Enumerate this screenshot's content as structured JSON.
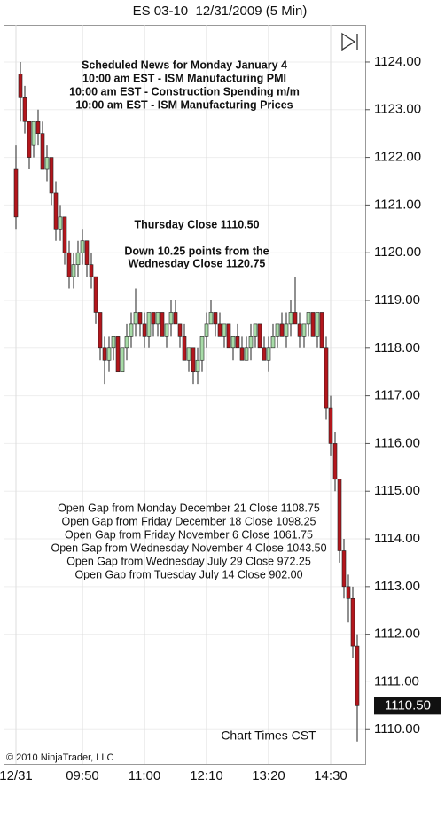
{
  "chart_data": {
    "type": "candlestick",
    "title": "ES 03-10  12/31/2009 (5 Min)",
    "categories": [
      "12/31",
      null,
      null,
      null,
      null,
      null,
      null,
      null,
      null,
      null,
      null,
      null,
      null,
      null,
      null,
      "09:50",
      null,
      null,
      null,
      null,
      null,
      null,
      null,
      null,
      null,
      null,
      null,
      null,
      null,
      "11:00",
      null,
      null,
      null,
      null,
      null,
      null,
      null,
      null,
      null,
      null,
      null,
      null,
      null,
      "12:10",
      null,
      null,
      null,
      null,
      null,
      null,
      null,
      null,
      null,
      null,
      null,
      null,
      null,
      "13:20",
      null,
      null,
      null,
      null,
      null,
      null,
      null,
      null,
      null,
      null,
      null,
      null,
      null,
      "14:30",
      null,
      null,
      null,
      null,
      null,
      null
    ],
    "open": [
      1121.75,
      1123.75,
      1123.25,
      1122.75,
      1122.25,
      1122.75,
      1122.5,
      1121.75,
      1122,
      1121.25,
      1120.5,
      1120.75,
      1120,
      1119.5,
      1119.75,
      1120,
      1120.25,
      1119.75,
      1119.5,
      1118.75,
      1118,
      1117.75,
      1118,
      1118.25,
      1117.5,
      1118,
      1118.25,
      1118.5,
      1118.75,
      1118.5,
      1118.25,
      1118.75,
      1118.5,
      1118.75,
      1118.25,
      1118.5,
      1118.75,
      1118.5,
      1118.25,
      1117.75,
      1118,
      1117.5,
      1117.75,
      1118.25,
      1118.5,
      1118.75,
      1118.5,
      1118.25,
      1118.5,
      1118,
      1118.25,
      1118,
      1117.75,
      1118,
      1118.25,
      1118.5,
      1118,
      1117.75,
      1118,
      1118.25,
      1118.5,
      1118.25,
      1118.5,
      1118.75,
      1118.5,
      1118.25,
      1118.5,
      1118.75,
      1118.25,
      1118.75,
      1118,
      1116.75,
      1116,
      1115.25,
      1113.75,
      1113,
      1112.75,
      1111.75
    ],
    "high": [
      1122.25,
      1124,
      1123.5,
      1122.75,
      1122.75,
      1123,
      1122.75,
      1122.25,
      1122,
      1121.5,
      1121,
      1120.75,
      1120.25,
      1120,
      1120.25,
      1120.5,
      1120.25,
      1120,
      1119.5,
      1118.75,
      1118.25,
      1118.25,
      1118.25,
      1118.25,
      1118,
      1118.5,
      1118.75,
      1119.25,
      1118.75,
      1118.75,
      1118.75,
      1118.75,
      1118.75,
      1118.75,
      1118.5,
      1119,
      1119,
      1118.5,
      1118.5,
      1118,
      1118,
      1118,
      1118.25,
      1118.75,
      1119,
      1118.75,
      1118.75,
      1118.5,
      1118.5,
      1118.25,
      1118.5,
      1118.25,
      1118.25,
      1118.5,
      1118.5,
      1118.5,
      1118.25,
      1118.25,
      1118.5,
      1118.5,
      1118.75,
      1118.75,
      1119,
      1119.5,
      1118.75,
      1118.5,
      1118.75,
      1118.75,
      1118.75,
      1118.75,
      1118.25,
      1117,
      1116.25,
      1115.25,
      1114,
      1113.25,
      1113,
      1112
    ],
    "low": [
      1120.5,
      1122.75,
      1122.5,
      1121.75,
      1122,
      1122.25,
      1121.75,
      1121.5,
      1121,
      1120.25,
      1120.25,
      1119.75,
      1119.25,
      1119.25,
      1119.5,
      1119.75,
      1119.5,
      1119.25,
      1118.5,
      1117.75,
      1117.25,
      1117.5,
      1117.75,
      1117.5,
      1117.5,
      1117.75,
      1118,
      1118.25,
      1118.25,
      1118,
      1118,
      1118.25,
      1118.25,
      1118.25,
      1118,
      1118.25,
      1118.5,
      1118,
      1117.75,
      1117.5,
      1117.25,
      1117.25,
      1117.5,
      1118,
      1118.5,
      1118.25,
      1118.25,
      1118,
      1118,
      1117.75,
      1118,
      1117.75,
      1117.75,
      1117.75,
      1118,
      1118,
      1117.75,
      1117.5,
      1118,
      1118,
      1118.25,
      1118,
      1118.25,
      1118.5,
      1118,
      1118,
      1118.25,
      1118.25,
      1118,
      1118,
      1116.5,
      1115.75,
      1115,
      1113.5,
      1112.75,
      1112.25,
      1111.5,
      1109.75
    ],
    "close": [
      1120.75,
      1123.25,
      1122.75,
      1122,
      1122.75,
      1122.5,
      1121.75,
      1122,
      1121.25,
      1120.5,
      1120.75,
      1120,
      1119.5,
      1119.75,
      1120,
      1120.25,
      1119.75,
      1119.5,
      1118.75,
      1118,
      1117.75,
      1118,
      1118.25,
      1117.5,
      1118,
      1118.25,
      1118.5,
      1118.75,
      1118.5,
      1118.25,
      1118.75,
      1118.5,
      1118.75,
      1118.25,
      1118.5,
      1118.75,
      1118.5,
      1118.25,
      1117.75,
      1118,
      1117.5,
      1117.75,
      1118.25,
      1118.5,
      1118.75,
      1118.5,
      1118.25,
      1118.5,
      1118,
      1118.25,
      1118,
      1117.75,
      1118,
      1118.25,
      1118.5,
      1118,
      1117.75,
      1118,
      1118.25,
      1118.5,
      1118.25,
      1118.5,
      1118.75,
      1118.5,
      1118.25,
      1118.5,
      1118.75,
      1118.25,
      1118.75,
      1118,
      1116.75,
      1116,
      1115.25,
      1113.75,
      1113,
      1112.75,
      1111.75,
      1110.5
    ],
    "up_color": "#a8dca8",
    "down_color": "#b3161c",
    "ylim": [
      1109.28,
      1124.78
    ],
    "yticks": [
      {
        "value": 1110,
        "label": "1110.00"
      },
      {
        "value": 1111,
        "label": "1111.00"
      },
      {
        "value": 1112,
        "label": "1112.00"
      },
      {
        "value": 1113,
        "label": "1113.00"
      },
      {
        "value": 1114,
        "label": "1114.00"
      },
      {
        "value": 1115,
        "label": "1115.00"
      },
      {
        "value": 1116,
        "label": "1116.00"
      },
      {
        "value": 1117,
        "label": "1117.00"
      },
      {
        "value": 1118,
        "label": "1118.00"
      },
      {
        "value": 1119,
        "label": "1119.00"
      },
      {
        "value": 1120,
        "label": "1120.00"
      },
      {
        "value": 1121,
        "label": "1121.00"
      },
      {
        "value": 1122,
        "label": "1122.00"
      },
      {
        "value": 1123,
        "label": "1123.00"
      },
      {
        "value": 1124,
        "label": "1124.00"
      }
    ],
    "last_price": {
      "value": 1110.5,
      "label": "1110.50"
    },
    "news": [
      "Scheduled News for Monday January 4",
      "10:00 am EST - ISM Manufacturing PMI",
      "10:00 am EST - Construction Spending m/m",
      "10:00 am EST - ISM Manufacturing Prices"
    ],
    "close_note": [
      "Thursday Close 1110.50",
      "Down 10.25 points from the",
      "Wednesday Close 1120.75"
    ],
    "gaps": [
      "Open Gap from Monday December 21 Close 1108.75",
      "Open Gap from Friday December 18 Close 1098.25",
      "Open Gap from Friday November 6 Close 1061.75",
      "Open Gap from Wednesday November 4 Close 1043.50",
      "Open Gap from Wednesday July 29 Close 972.25",
      "Open Gap from Tuesday July 14 Close 902.00"
    ],
    "copyright": "© 2010 NinjaTrader, LLC",
    "time_zone": "Chart Times CST"
  }
}
